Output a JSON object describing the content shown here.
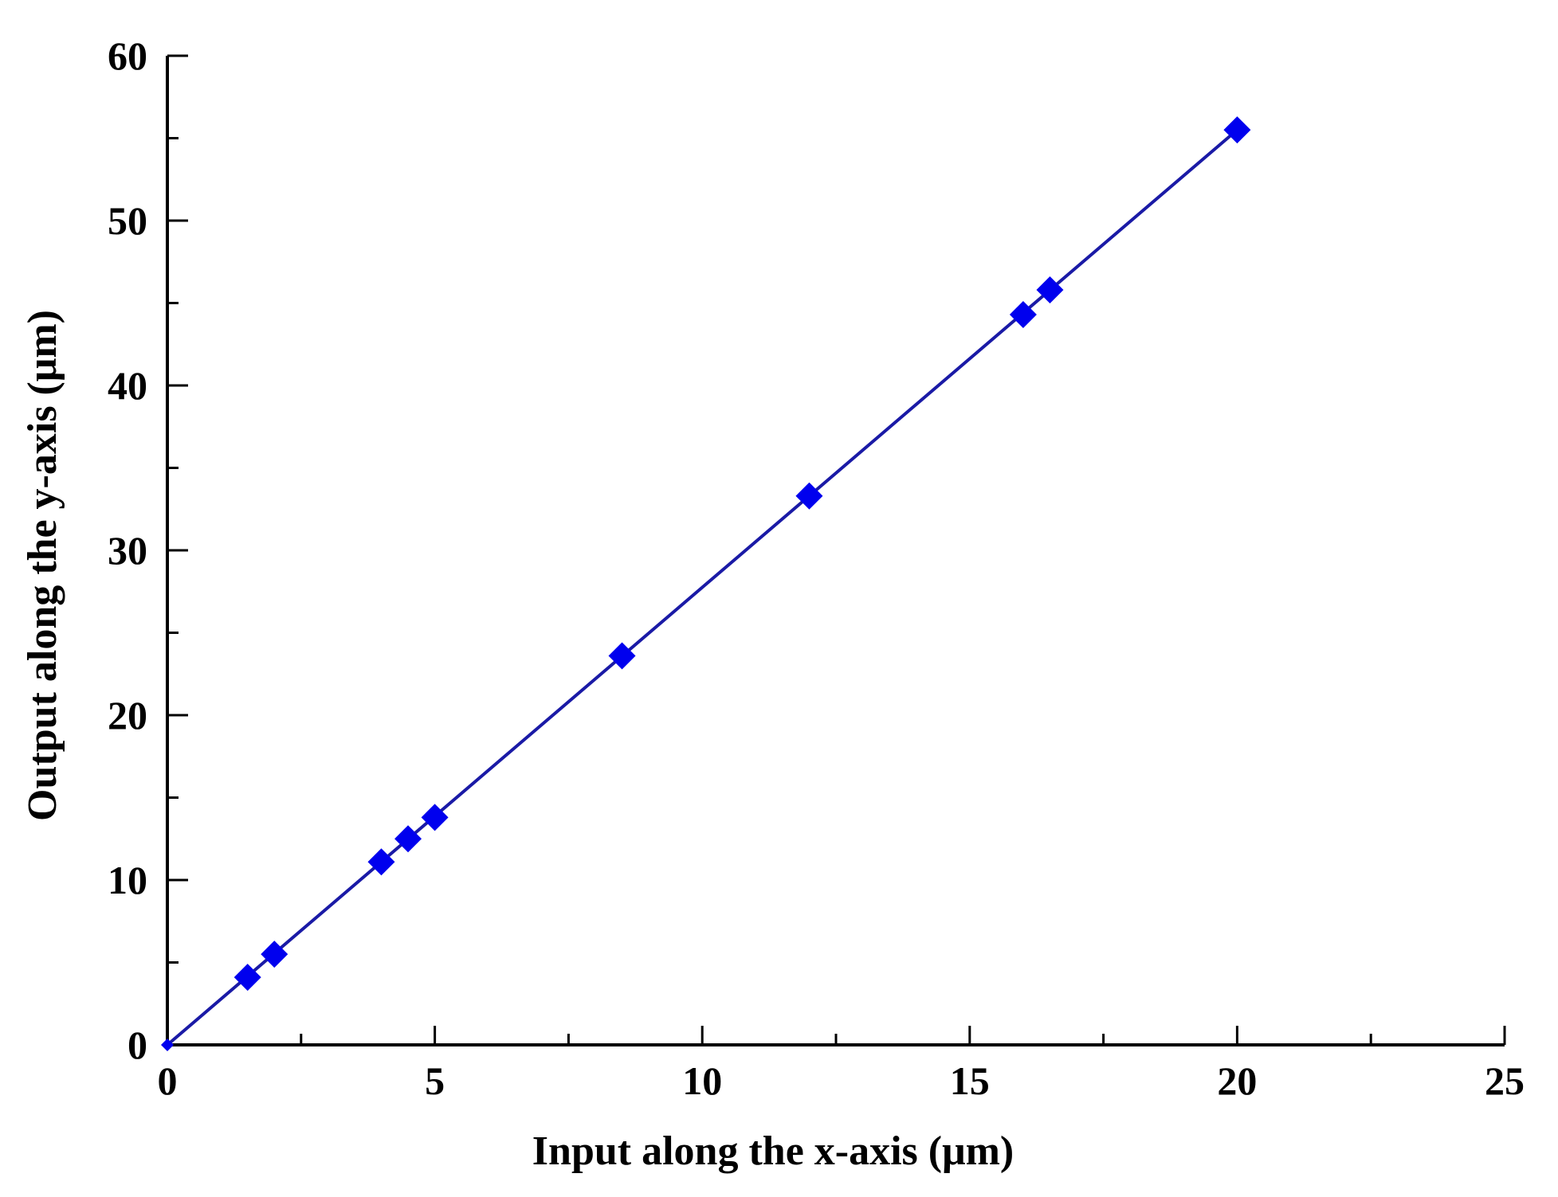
{
  "chart_data": {
    "type": "scatter",
    "title": "",
    "xlabel": "Input along the x-axis (μm)",
    "ylabel": "Output along the y-axis (μm)",
    "xlim": [
      0,
      25
    ],
    "ylim": [
      0,
      60
    ],
    "x_ticks": [
      "0",
      "5",
      "10",
      "15",
      "20",
      "25"
    ],
    "y_ticks": [
      "0",
      "10",
      "20",
      "30",
      "40",
      "50",
      "60"
    ],
    "grid": false,
    "series": [
      {
        "marker": "diamond",
        "color": "#0000ee",
        "line_color": "#1a1aa6",
        "points": [
          {
            "x": 0,
            "y": 0
          },
          {
            "x": 1.5,
            "y": 4.1
          },
          {
            "x": 2.0,
            "y": 5.5
          },
          {
            "x": 4.0,
            "y": 11.1
          },
          {
            "x": 4.5,
            "y": 12.5
          },
          {
            "x": 5.0,
            "y": 13.8
          },
          {
            "x": 8.5,
            "y": 23.6
          },
          {
            "x": 12.0,
            "y": 33.3
          },
          {
            "x": 16.0,
            "y": 44.3
          },
          {
            "x": 16.5,
            "y": 45.8
          },
          {
            "x": 20.0,
            "y": 55.5
          }
        ],
        "fit_line": {
          "x": [
            0,
            20
          ],
          "y": [
            0,
            55.5
          ]
        }
      }
    ]
  }
}
